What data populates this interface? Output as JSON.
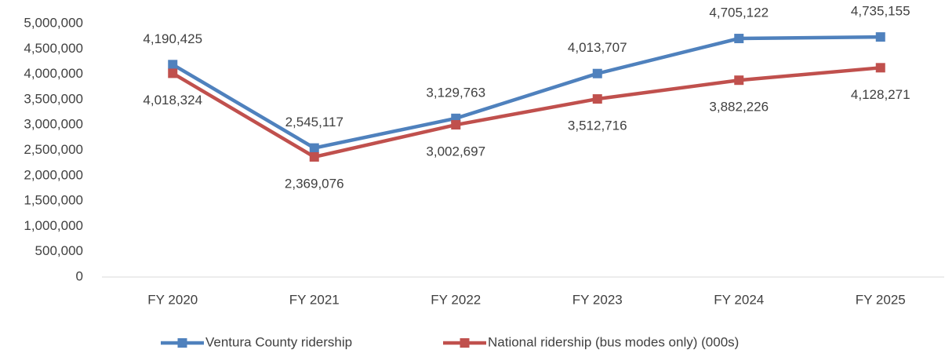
{
  "chart_data": {
    "type": "line",
    "categories": [
      "FY 2020",
      "FY 2021",
      "FY 2022",
      "FY 2023",
      "FY 2024",
      "FY 2025"
    ],
    "series": [
      {
        "name": "Ventura County ridership",
        "color": "#4f81bd",
        "values": [
          4190425,
          2545117,
          3129763,
          4013707,
          4705122,
          4735155
        ],
        "value_labels": [
          "4,190,425",
          "2,545,117",
          "3,129,763",
          "4,013,707",
          "4,705,122",
          "4,735,155"
        ]
      },
      {
        "name": "National ridership (bus modes only) (000s)",
        "color": "#c0504d",
        "values": [
          4018324,
          2369076,
          3002697,
          3512716,
          3882226,
          4128271
        ],
        "value_labels": [
          "4,018,324",
          "2,369,076",
          "3,002,697",
          "3,512,716",
          "3,882,226",
          "4,128,271"
        ]
      }
    ],
    "ylim": [
      0,
      5000000
    ],
    "yticks": [
      0,
      {
        "value": 500000,
        "label": "500,000"
      },
      {
        "value": 1000000,
        "label": "1,000,000"
      },
      {
        "value": 1500000,
        "label": "1,500,000"
      },
      {
        "value": 2000000,
        "label": "2,000,000"
      },
      {
        "value": 2500000,
        "label": "2,500,000"
      },
      {
        "value": 3000000,
        "label": "3,000,000"
      },
      {
        "value": 3500000,
        "label": "3,500,000"
      },
      {
        "value": 4000000,
        "label": "4,000,000"
      },
      {
        "value": 4500000,
        "label": "4,500,000"
      },
      {
        "value": 5000000,
        "label": "5,000,000"
      }
    ],
    "grid": false,
    "legend": "bottom"
  }
}
